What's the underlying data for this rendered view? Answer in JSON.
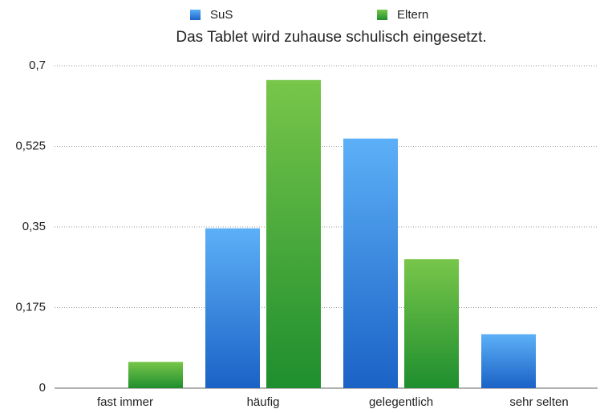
{
  "chart_data": {
    "type": "bar",
    "title": "Das Tablet wird zuhause schulisch eingesetzt.",
    "categories": [
      "fast immer",
      "häufig",
      "gelegentlich",
      "sehr selten"
    ],
    "series": [
      {
        "name": "SuS",
        "color": "#3d8ee6",
        "values": [
          0,
          0.347,
          0.542,
          0.117
        ]
      },
      {
        "name": "Eltern",
        "color": "#45a83a",
        "values": [
          0.057,
          0.669,
          0.28,
          0
        ]
      }
    ],
    "ylim": [
      0,
      0.7
    ],
    "yticks": [
      0,
      {
        "value": 0.175,
        "label": "0,175"
      },
      {
        "value": 0.35,
        "label": "0,35"
      },
      {
        "value": 0.525,
        "label": "0,525"
      },
      {
        "value": 0.7,
        "label": "0,7"
      }
    ],
    "grid": true
  }
}
